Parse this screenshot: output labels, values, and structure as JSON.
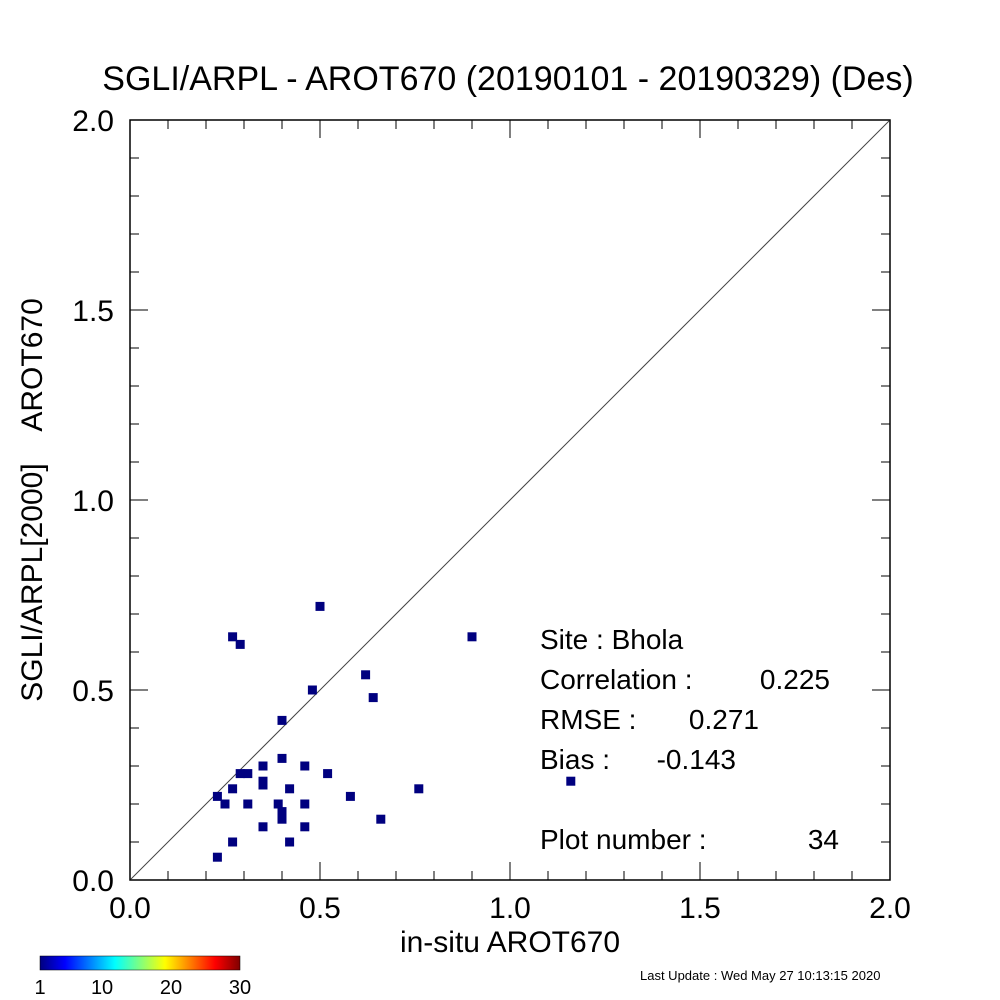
{
  "colors": {
    "point": "#00007f",
    "axis": "#000000",
    "diagonal": "#444444"
  },
  "chart_data": {
    "type": "scatter",
    "title": "SGLI/ARPL - AROT670 (20190101 - 20190329) (Des)",
    "xlabel": "in-situ AROT670",
    "ylabel": "SGLI/ARPL[2000]    AROT670",
    "xlim": [
      0.0,
      2.0
    ],
    "ylim": [
      0.0,
      2.0
    ],
    "xticks": [
      0.0,
      0.5,
      1.0,
      1.5,
      2.0
    ],
    "xtick_labels": [
      "0.0",
      "0.5",
      "1.0",
      "1.5",
      "2.0"
    ],
    "yticks": [
      0.0,
      0.5,
      1.0,
      1.5,
      2.0
    ],
    "ytick_labels": [
      "0.0",
      "0.5",
      "1.0",
      "1.5",
      "2.0"
    ],
    "grid": false,
    "reference_line": "1:1",
    "x": [
      0.5,
      0.27,
      0.29,
      0.9,
      0.62,
      0.48,
      0.64,
      0.4,
      0.4,
      0.35,
      0.46,
      0.29,
      0.31,
      0.52,
      0.35,
      0.76,
      0.27,
      0.35,
      0.42,
      0.23,
      0.58,
      0.25,
      0.31,
      0.39,
      0.46,
      0.4,
      0.4,
      0.66,
      0.35,
      0.46,
      0.27,
      0.42,
      0.23,
      1.16
    ],
    "y": [
      0.72,
      0.64,
      0.62,
      0.64,
      0.54,
      0.5,
      0.48,
      0.42,
      0.32,
      0.3,
      0.3,
      0.28,
      0.28,
      0.28,
      0.26,
      0.24,
      0.24,
      0.25,
      0.24,
      0.22,
      0.22,
      0.2,
      0.2,
      0.2,
      0.2,
      0.18,
      0.16,
      0.16,
      0.14,
      0.14,
      0.1,
      0.1,
      0.06,
      0.26
    ],
    "annotations": {
      "site_label": "Site : Bhola",
      "correlation_label": "Correlation :",
      "correlation_value": "0.225",
      "rmse_label": "RMSE :",
      "rmse_value": "0.271",
      "bias_label": "Bias :",
      "bias_value": "-0.143",
      "plot_number_label": "Plot number :",
      "plot_number_value": "34"
    },
    "colorbar": {
      "min": 1,
      "max": 30,
      "tick_labels": [
        "1",
        "10",
        "20",
        "30"
      ],
      "tick_values": [
        1,
        10,
        20,
        30
      ]
    }
  },
  "footer": {
    "last_update": "Last Update : Wed May 27 10:13:15 2020"
  }
}
